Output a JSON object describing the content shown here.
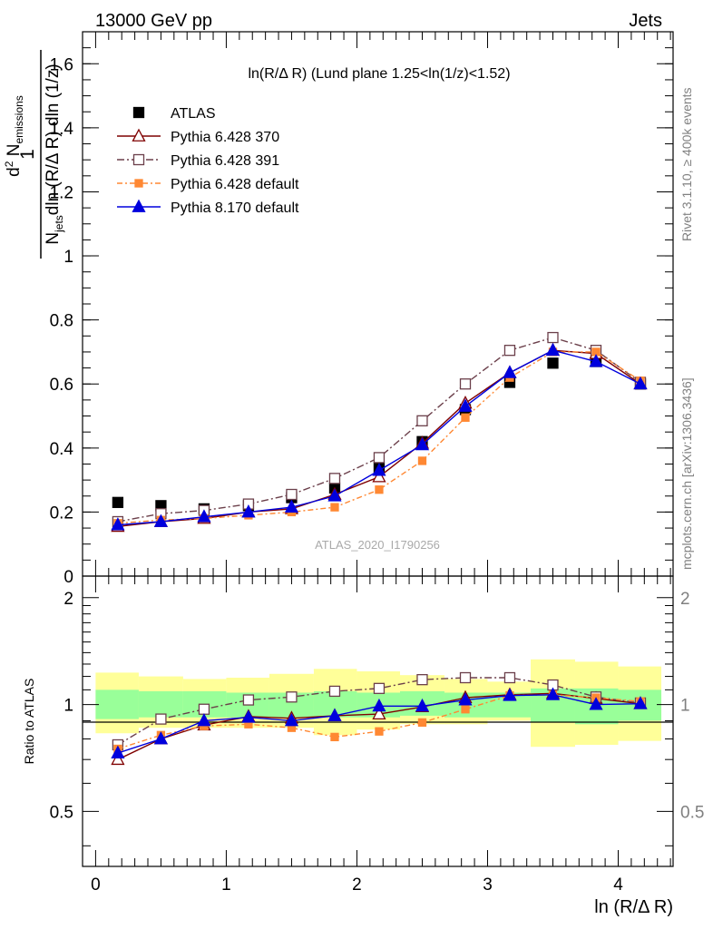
{
  "header": {
    "left": "13000 GeV pp",
    "right": "Jets"
  },
  "side_labels": {
    "rivet": "Rivet 3.1.10, ≥ 400k events",
    "mcplots": "mcplots.cern.ch [arXiv:1306.3436]"
  },
  "watermark": "ATLAS_2020_I1790256",
  "colors": {
    "atlas": "#000000",
    "py370": "#7f0000",
    "py391": "#6b3f4a",
    "pydef": "#ff8833",
    "py8": "#0000dd",
    "band_inner": "#99ff99",
    "band_outer": "#ffff99"
  },
  "chart_data": [
    {
      "type": "line",
      "panel": "main",
      "title": "ln(R/Δ R) (Lund plane 1.25<ln(1/z)<1.52)",
      "ylabel": "1/N_jets d²N_emissions/dln(R/Δ R) dln(1/z)",
      "xlim": [
        -0.1,
        4.42
      ],
      "ylim": [
        0,
        1.7
      ],
      "y_ticks": [
        "0",
        "0.2",
        "0.4",
        "0.6",
        "0.8",
        "1",
        "1.2",
        "1.4",
        "1.6"
      ],
      "x": [
        0.17,
        0.5,
        0.83,
        1.17,
        1.5,
        1.83,
        2.17,
        2.5,
        2.83,
        3.17,
        3.5,
        3.83,
        4.17
      ],
      "series": [
        {
          "name": "ATLAS",
          "style": "data",
          "values": [
            0.23,
            0.22,
            0.21,
            0.22,
            0.245,
            0.275,
            0.34,
            0.42,
            0.52,
            0.605,
            0.665,
            0.67,
            0.6
          ]
        },
        {
          "name": "Pythia 6.428 370",
          "style": "py370",
          "values": [
            0.155,
            0.17,
            0.18,
            0.2,
            0.21,
            0.255,
            0.31,
            0.415,
            0.54,
            0.635,
            0.705,
            0.695,
            0.6
          ]
        },
        {
          "name": "Pythia 6.428 391",
          "style": "py391",
          "values": [
            0.17,
            0.195,
            0.205,
            0.225,
            0.255,
            0.305,
            0.37,
            0.485,
            0.6,
            0.705,
            0.745,
            0.705,
            0.605
          ]
        },
        {
          "name": "Pythia 6.428 default",
          "style": "pydef",
          "values": [
            0.165,
            0.175,
            0.18,
            0.19,
            0.2,
            0.215,
            0.27,
            0.36,
            0.495,
            0.62,
            0.7,
            0.7,
            0.61
          ]
        },
        {
          "name": "Pythia 8.170 default",
          "style": "py8",
          "values": [
            0.16,
            0.17,
            0.185,
            0.2,
            0.215,
            0.25,
            0.33,
            0.41,
            0.53,
            0.635,
            0.705,
            0.67,
            0.6
          ]
        }
      ]
    },
    {
      "type": "line",
      "panel": "ratio",
      "ylabel": "Ratio to ATLAS",
      "xlabel": "ln (R/Δ R)",
      "xlim": [
        -0.1,
        4.42
      ],
      "ylim": [
        0.35,
        2.3
      ],
      "log_y": true,
      "y_ticks": [
        "0.5",
        "1",
        "2"
      ],
      "x_ticks": [
        "0",
        "1",
        "2",
        "3",
        "4"
      ],
      "x": [
        0.17,
        0.5,
        0.83,
        1.17,
        1.5,
        1.83,
        2.17,
        2.5,
        2.83,
        3.17,
        3.5,
        3.83,
        4.17
      ],
      "band_edges": [
        0,
        0.33,
        0.67,
        1.0,
        1.33,
        1.67,
        2.0,
        2.33,
        2.67,
        3.0,
        3.33,
        3.67,
        4.0,
        4.33
      ],
      "band_inner": [
        [
          0.91,
          1.1
        ],
        [
          0.92,
          1.09
        ],
        [
          0.92,
          1.09
        ],
        [
          0.92,
          1.08
        ],
        [
          0.92,
          1.08
        ],
        [
          0.92,
          1.09
        ],
        [
          0.92,
          1.08
        ],
        [
          0.93,
          1.09
        ],
        [
          0.92,
          1.08
        ],
        [
          0.92,
          1.08
        ],
        [
          0.89,
          1.11
        ],
        [
          0.88,
          1.11
        ],
        [
          0.9,
          1.1
        ]
      ],
      "band_outer": [
        [
          0.83,
          1.23
        ],
        [
          0.86,
          1.2
        ],
        [
          0.86,
          1.18
        ],
        [
          0.86,
          1.19
        ],
        [
          0.86,
          1.22
        ],
        [
          0.82,
          1.26
        ],
        [
          0.85,
          1.24
        ],
        [
          0.88,
          1.21
        ],
        [
          0.88,
          1.18
        ],
        [
          0.9,
          1.16
        ],
        [
          0.76,
          1.34
        ],
        [
          0.77,
          1.32
        ],
        [
          0.79,
          1.28
        ]
      ],
      "series": [
        {
          "name": "Pythia 6.428 370",
          "style": "py370",
          "values": [
            0.7,
            0.8,
            0.875,
            0.925,
            0.915,
            0.93,
            0.94,
            0.985,
            1.045,
            1.065,
            1.075,
            1.04,
            1.005
          ]
        },
        {
          "name": "Pythia 6.428 391",
          "style": "py391",
          "values": [
            0.77,
            0.91,
            0.97,
            1.03,
            1.05,
            1.09,
            1.11,
            1.175,
            1.19,
            1.19,
            1.135,
            1.05,
            1.01
          ]
        },
        {
          "name": "Pythia 6.428 default",
          "style": "pydef",
          "values": [
            0.75,
            0.82,
            0.87,
            0.88,
            0.86,
            0.81,
            0.84,
            0.89,
            0.97,
            1.06,
            1.065,
            1.045,
            1.02
          ]
        },
        {
          "name": "Pythia 8.170 default",
          "style": "py8",
          "values": [
            0.73,
            0.8,
            0.9,
            0.92,
            0.9,
            0.93,
            0.99,
            0.99,
            1.03,
            1.06,
            1.065,
            1.0,
            1.005
          ]
        }
      ]
    }
  ]
}
